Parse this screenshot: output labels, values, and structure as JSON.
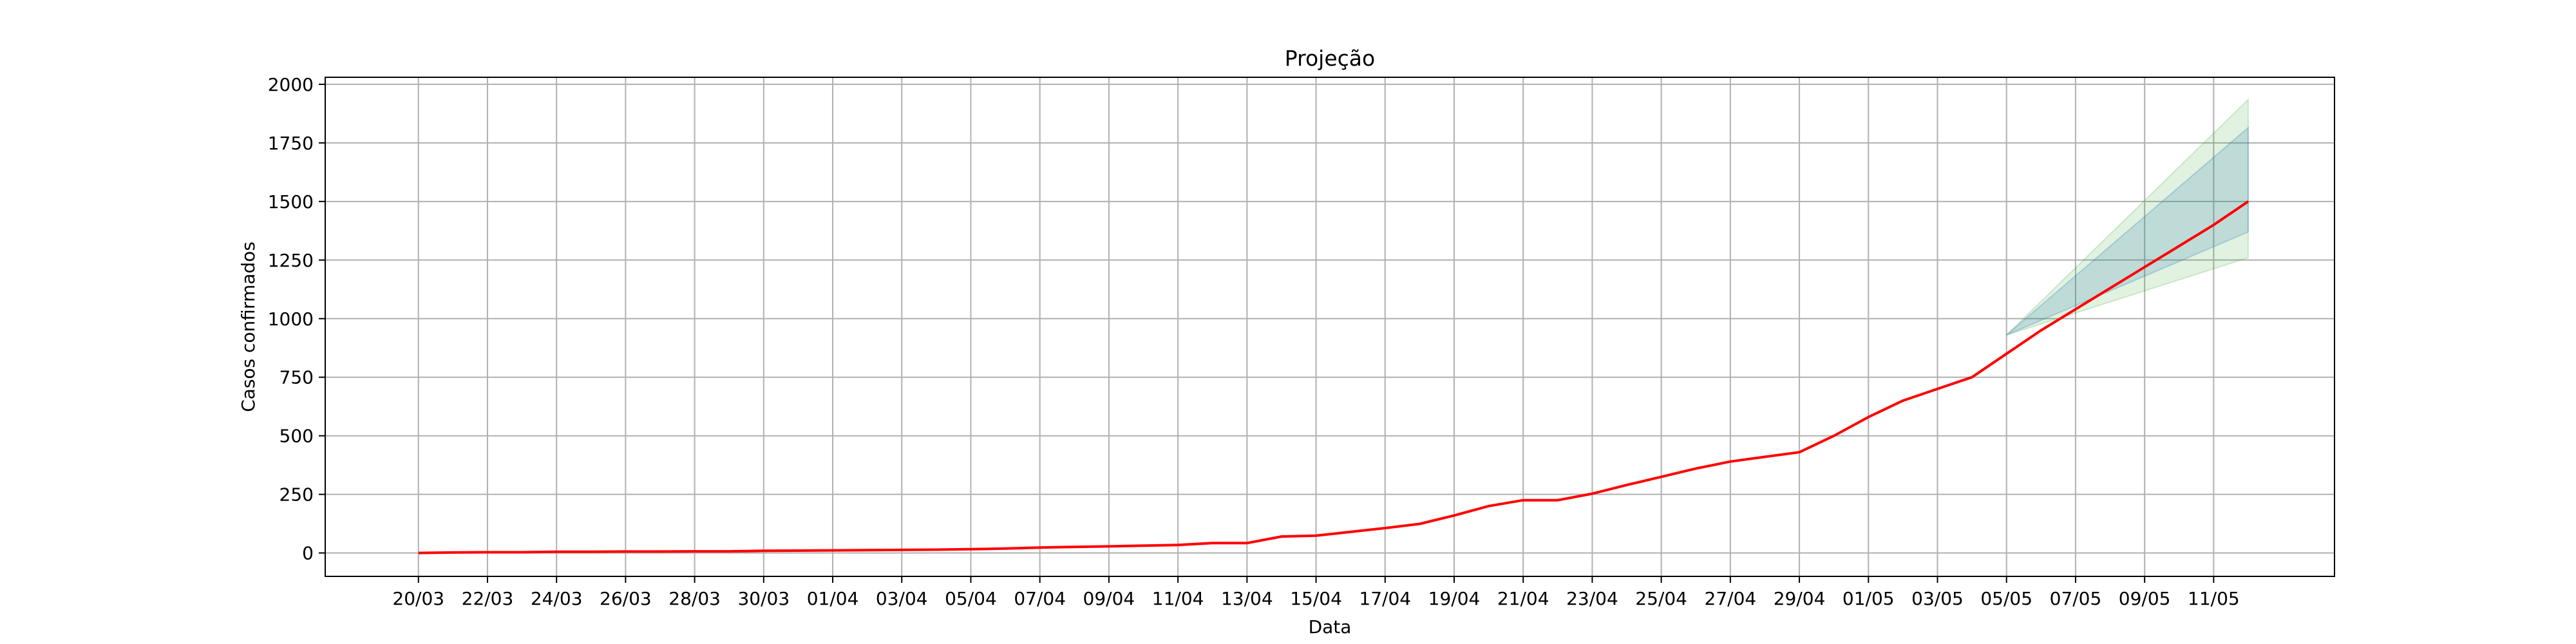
{
  "chart_data": {
    "type": "line",
    "title": "Projeção",
    "xlabel": "Data",
    "ylabel": "Casos confirmados",
    "ylim": [
      -100,
      2030
    ],
    "xlim": [
      -2.7,
      55.5
    ],
    "y_ticks": [
      0,
      250,
      500,
      750,
      1000,
      1250,
      1500,
      1750,
      2000
    ],
    "x_ticks": [
      {
        "x": 0,
        "label": "20/03"
      },
      {
        "x": 2,
        "label": "22/03"
      },
      {
        "x": 4,
        "label": "24/03"
      },
      {
        "x": 6,
        "label": "26/03"
      },
      {
        "x": 8,
        "label": "28/03"
      },
      {
        "x": 10,
        "label": "30/03"
      },
      {
        "x": 12,
        "label": "01/04"
      },
      {
        "x": 14,
        "label": "03/04"
      },
      {
        "x": 16,
        "label": "05/04"
      },
      {
        "x": 18,
        "label": "07/04"
      },
      {
        "x": 20,
        "label": "09/04"
      },
      {
        "x": 22,
        "label": "11/04"
      },
      {
        "x": 24,
        "label": "13/04"
      },
      {
        "x": 26,
        "label": "15/04"
      },
      {
        "x": 28,
        "label": "17/04"
      },
      {
        "x": 30,
        "label": "19/04"
      },
      {
        "x": 32,
        "label": "21/04"
      },
      {
        "x": 34,
        "label": "23/04"
      },
      {
        "x": 36,
        "label": "25/04"
      },
      {
        "x": 38,
        "label": "27/04"
      },
      {
        "x": 40,
        "label": "29/04"
      },
      {
        "x": 42,
        "label": "01/05"
      },
      {
        "x": 44,
        "label": "03/05"
      },
      {
        "x": 46,
        "label": "05/05"
      },
      {
        "x": 48,
        "label": "07/05"
      },
      {
        "x": 50,
        "label": "09/05"
      },
      {
        "x": 52,
        "label": "11/05"
      }
    ],
    "grid": true,
    "series": [
      {
        "name": "Casos confirmados",
        "color": "#ff0000",
        "x": [
          0,
          1,
          2,
          3,
          4,
          5,
          6,
          7,
          8,
          9,
          10,
          11,
          12,
          13,
          14,
          15,
          16,
          17,
          18,
          19,
          20,
          21,
          22,
          23,
          24,
          25,
          26,
          27,
          28,
          29,
          30,
          31,
          32,
          33,
          34,
          35,
          36,
          37,
          38,
          39,
          40,
          41,
          42,
          43,
          44,
          45,
          46,
          47,
          48,
          49,
          50,
          51,
          52,
          53
        ],
        "y": [
          0,
          2,
          3,
          3,
          5,
          5,
          6,
          6,
          7,
          7,
          9,
          10,
          11,
          12,
          13,
          14,
          16,
          19,
          23,
          26,
          28,
          31,
          34,
          42,
          42,
          70,
          74,
          90,
          106,
          124,
          160,
          200,
          225,
          225,
          253,
          290,
          325,
          360,
          390,
          410,
          430,
          500,
          580,
          650,
          700,
          750,
          850,
          950,
          1040,
          1130,
          1220,
          1310,
          1400,
          1500
        ]
      }
    ],
    "bands": [
      {
        "name": "outer",
        "color": "#2ca02c",
        "opacity": 0.14,
        "x": [
          46,
          53
        ],
        "lower": [
          930,
          1260
        ],
        "upper": [
          930,
          1935
        ]
      },
      {
        "name": "inner",
        "color": "#1f77b4",
        "opacity": 0.18,
        "x": [
          46,
          53
        ],
        "lower": [
          930,
          1370
        ],
        "upper": [
          930,
          1815
        ]
      }
    ],
    "colors": {
      "grid": "#b0b0b0",
      "axes": "#000000"
    }
  }
}
